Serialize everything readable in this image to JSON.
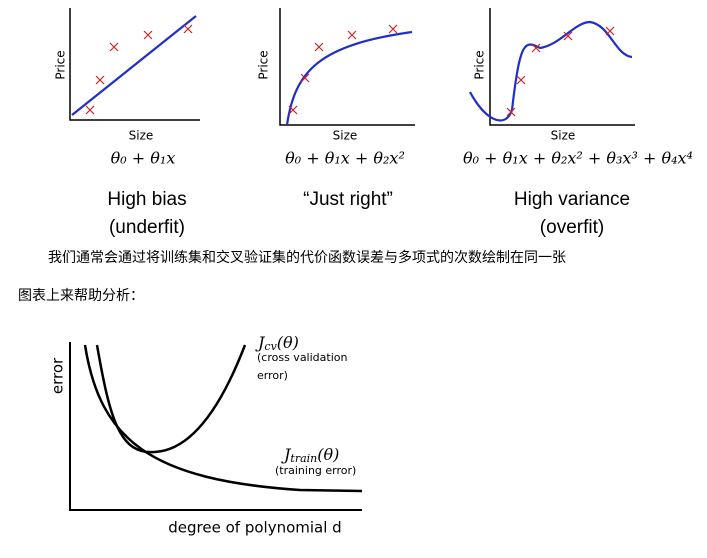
{
  "panels": [
    {
      "y_label": "Price",
      "x_label": "Size",
      "formula": "θ₀ + θ₁x",
      "caption_line1": "High bias",
      "caption_line2": "(underfit)"
    },
    {
      "y_label": "Price",
      "x_label": "Size",
      "formula": "θ₀ + θ₁x + θ₂x²",
      "caption_line1": "“Just right”"
    },
    {
      "y_label": "Price",
      "x_label": "Size",
      "formula": "θ₀ + θ₁x + θ₂x² + θ₃x³ + θ₄x⁴",
      "caption_line1": "High variance",
      "caption_line2": "(overfit)"
    }
  ],
  "paragraph": {
    "line1": "我们通常会通过将训练集和交叉验证集的代价函数误差与多项式的次数绘制在同一张",
    "line2": "图表上来帮助分析："
  },
  "error_figure": {
    "y_label": "error",
    "x_label": "degree of polynomial d",
    "cv": {
      "symbol": "J",
      "subscript": "cv",
      "argument": "(θ)",
      "note_line1": "(cross validation",
      "note_line2": "error)"
    },
    "train": {
      "symbol": "J",
      "subscript": "train",
      "argument": "(θ)",
      "note_line1": "(training error)"
    }
  }
}
